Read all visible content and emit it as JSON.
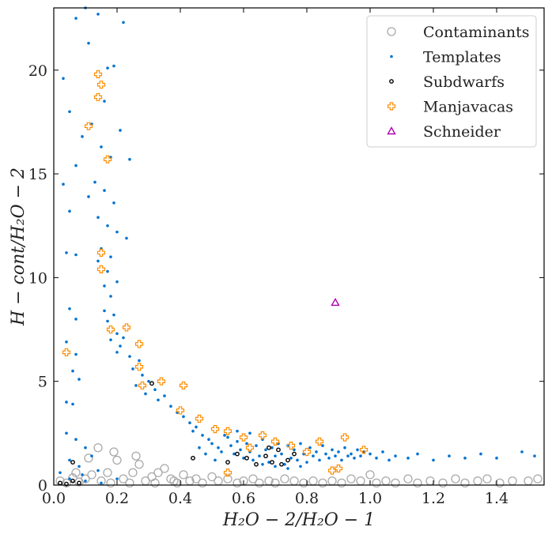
{
  "chart_data": {
    "type": "scatter",
    "xlabel": "H₂O − 2/H₂O − 1",
    "ylabel": "H − cont/H₂O − 2",
    "xlim": [
      0.0,
      1.55
    ],
    "ylim": [
      0,
      23
    ],
    "x_ticks": [
      0.0,
      0.2,
      0.4,
      0.6,
      0.8,
      1.0,
      1.2,
      1.4
    ],
    "x_tick_labels": [
      "0.0",
      "0.2",
      "0.4",
      "0.6",
      "0.8",
      "1.0",
      "1.2",
      "1.4"
    ],
    "y_ticks": [
      0,
      5,
      10,
      15,
      20
    ],
    "y_tick_labels": [
      "0",
      "5",
      "10",
      "15",
      "20"
    ],
    "grid": false,
    "legend_position": "top-right",
    "series": [
      {
        "name": "Contaminants",
        "marker": "open-circle",
        "color": "#a9a9a9",
        "points": [
          [
            0.02,
            0.2
          ],
          [
            0.04,
            0.1
          ],
          [
            0.06,
            0.35
          ],
          [
            0.08,
            0.15
          ],
          [
            0.1,
            0.3
          ],
          [
            0.12,
            0.5
          ],
          [
            0.14,
            1.8
          ],
          [
            0.15,
            0.2
          ],
          [
            0.17,
            0.6
          ],
          [
            0.19,
            1.6
          ],
          [
            0.2,
            1.2
          ],
          [
            0.22,
            0.3
          ],
          [
            0.24,
            0.1
          ],
          [
            0.26,
            1.4
          ],
          [
            0.27,
            1.0
          ],
          [
            0.29,
            0.2
          ],
          [
            0.31,
            0.4
          ],
          [
            0.33,
            0.6
          ],
          [
            0.35,
            0.8
          ],
          [
            0.37,
            0.3
          ],
          [
            0.39,
            0.1
          ],
          [
            0.41,
            0.5
          ],
          [
            0.43,
            0.2
          ],
          [
            0.45,
            0.3
          ],
          [
            0.47,
            0.1
          ],
          [
            0.5,
            0.4
          ],
          [
            0.52,
            0.2
          ],
          [
            0.55,
            0.3
          ],
          [
            0.58,
            0.1
          ],
          [
            0.6,
            0.2
          ],
          [
            0.63,
            0.3
          ],
          [
            0.65,
            0.1
          ],
          [
            0.68,
            0.2
          ],
          [
            0.7,
            0.1
          ],
          [
            0.73,
            0.3
          ],
          [
            0.76,
            0.2
          ],
          [
            0.79,
            0.1
          ],
          [
            0.82,
            0.2
          ],
          [
            0.85,
            0.1
          ],
          [
            0.88,
            0.2
          ],
          [
            0.91,
            0.1
          ],
          [
            0.94,
            0.3
          ],
          [
            0.97,
            0.2
          ],
          [
            1.0,
            0.5
          ],
          [
            1.02,
            0.1
          ],
          [
            1.05,
            0.2
          ],
          [
            1.08,
            0.1
          ],
          [
            1.12,
            0.3
          ],
          [
            1.15,
            0.1
          ],
          [
            1.19,
            0.2
          ],
          [
            1.23,
            0.1
          ],
          [
            1.27,
            0.3
          ],
          [
            1.3,
            0.1
          ],
          [
            1.34,
            0.2
          ],
          [
            1.37,
            0.3
          ],
          [
            1.41,
            0.1
          ],
          [
            1.45,
            0.2
          ],
          [
            1.5,
            0.2
          ],
          [
            1.53,
            0.3
          ],
          [
            0.18,
            0.1
          ],
          [
            0.25,
            0.6
          ],
          [
            0.32,
            0.1
          ],
          [
            0.38,
            0.2
          ],
          [
            0.11,
            1.3
          ],
          [
            0.07,
            0.6
          ]
        ]
      },
      {
        "name": "Templates",
        "marker": "dot",
        "color": "#0072cf",
        "points": [
          [
            0.03,
            19.6
          ],
          [
            0.05,
            18.0
          ],
          [
            0.07,
            22.5
          ],
          [
            0.1,
            23.0
          ],
          [
            0.11,
            21.3
          ],
          [
            0.14,
            22.7
          ],
          [
            0.16,
            18.5
          ],
          [
            0.17,
            20.1
          ],
          [
            0.19,
            20.2
          ],
          [
            0.22,
            22.3
          ],
          [
            0.09,
            16.8
          ],
          [
            0.12,
            17.4
          ],
          [
            0.15,
            16.3
          ],
          [
            0.18,
            15.8
          ],
          [
            0.21,
            17.1
          ],
          [
            0.24,
            15.7
          ],
          [
            0.07,
            15.4
          ],
          [
            0.13,
            14.6
          ],
          [
            0.16,
            14.2
          ],
          [
            0.19,
            13.6
          ],
          [
            0.03,
            14.5
          ],
          [
            0.05,
            13.2
          ],
          [
            0.11,
            13.9
          ],
          [
            0.14,
            12.9
          ],
          [
            0.17,
            12.5
          ],
          [
            0.2,
            12.2
          ],
          [
            0.23,
            11.9
          ],
          [
            0.07,
            11.1
          ],
          [
            0.15,
            11.4
          ],
          [
            0.18,
            11.0
          ],
          [
            0.04,
            11.2
          ],
          [
            0.14,
            10.8
          ],
          [
            0.17,
            10.3
          ],
          [
            0.2,
            9.8
          ],
          [
            0.16,
            9.6
          ],
          [
            0.18,
            9.1
          ],
          [
            0.05,
            8.5
          ],
          [
            0.07,
            8.0
          ],
          [
            0.16,
            8.4
          ],
          [
            0.19,
            8.2
          ],
          [
            0.17,
            7.9
          ],
          [
            0.2,
            7.3
          ],
          [
            0.22,
            7.1
          ],
          [
            0.18,
            7.0
          ],
          [
            0.04,
            6.9
          ],
          [
            0.07,
            6.3
          ],
          [
            0.21,
            6.7
          ],
          [
            0.24,
            6.2
          ],
          [
            0.27,
            6.0
          ],
          [
            0.2,
            6.4
          ],
          [
            0.06,
            5.5
          ],
          [
            0.08,
            5.1
          ],
          [
            0.25,
            5.6
          ],
          [
            0.28,
            5.3
          ],
          [
            0.3,
            5.0
          ],
          [
            0.26,
            4.8
          ],
          [
            0.32,
            4.6
          ],
          [
            0.35,
            4.3
          ],
          [
            0.04,
            4.0
          ],
          [
            0.06,
            3.9
          ],
          [
            0.29,
            4.4
          ],
          [
            0.33,
            4.1
          ],
          [
            0.37,
            3.8
          ],
          [
            0.39,
            3.5
          ],
          [
            0.41,
            3.3
          ],
          [
            0.43,
            3.0
          ],
          [
            0.45,
            2.8
          ],
          [
            0.04,
            2.5
          ],
          [
            0.07,
            2.2
          ],
          [
            0.1,
            1.8
          ],
          [
            0.12,
            1.4
          ],
          [
            0.05,
            1.2
          ],
          [
            0.08,
            0.9
          ],
          [
            0.02,
            0.6
          ],
          [
            0.09,
            0.5
          ],
          [
            0.14,
            0.7
          ],
          [
            0.44,
            2.6
          ],
          [
            0.47,
            2.4
          ],
          [
            0.49,
            2.2
          ],
          [
            0.5,
            2.0
          ],
          [
            0.52,
            1.8
          ],
          [
            0.53,
            1.6
          ],
          [
            0.55,
            2.3
          ],
          [
            0.56,
            1.9
          ],
          [
            0.57,
            1.5
          ],
          [
            0.58,
            2.1
          ],
          [
            0.59,
            1.7
          ],
          [
            0.6,
            1.3
          ],
          [
            0.61,
            2.0
          ],
          [
            0.62,
            1.6
          ],
          [
            0.63,
            1.2
          ],
          [
            0.64,
            1.9
          ],
          [
            0.65,
            1.4
          ],
          [
            0.66,
            2.2
          ],
          [
            0.67,
            1.7
          ],
          [
            0.68,
            1.1
          ],
          [
            0.69,
            1.8
          ],
          [
            0.7,
            1.4
          ],
          [
            0.71,
            2.0
          ],
          [
            0.72,
            1.5
          ],
          [
            0.73,
            1.0
          ],
          [
            0.74,
            1.9
          ],
          [
            0.75,
            1.3
          ],
          [
            0.76,
            1.7
          ],
          [
            0.77,
            1.2
          ],
          [
            0.78,
            2.0
          ],
          [
            0.79,
            1.5
          ],
          [
            0.8,
            1.1
          ],
          [
            0.81,
            1.8
          ],
          [
            0.82,
            1.4
          ],
          [
            0.83,
            1.6
          ],
          [
            0.84,
            1.2
          ],
          [
            0.85,
            1.9
          ],
          [
            0.86,
            1.5
          ],
          [
            0.87,
            1.3
          ],
          [
            0.88,
            1.7
          ],
          [
            0.89,
            1.4
          ],
          [
            0.9,
            1.6
          ],
          [
            0.91,
            1.2
          ],
          [
            0.92,
            1.8
          ],
          [
            0.93,
            1.4
          ],
          [
            0.94,
            1.5
          ],
          [
            0.95,
            1.3
          ],
          [
            0.96,
            1.7
          ],
          [
            0.97,
            1.4
          ],
          [
            0.98,
            1.6
          ],
          [
            1.0,
            1.5
          ],
          [
            1.02,
            1.3
          ],
          [
            1.04,
            1.6
          ],
          [
            1.06,
            1.2
          ],
          [
            1.08,
            1.4
          ],
          [
            1.12,
            1.3
          ],
          [
            1.15,
            1.5
          ],
          [
            1.2,
            1.2
          ],
          [
            1.25,
            1.4
          ],
          [
            1.3,
            1.3
          ],
          [
            1.35,
            1.5
          ],
          [
            1.4,
            1.3
          ],
          [
            1.48,
            1.6
          ],
          [
            1.52,
            1.4
          ],
          [
            0.54,
            2.4
          ],
          [
            0.58,
            2.6
          ],
          [
            0.62,
            2.5
          ],
          [
            0.66,
            1.0
          ],
          [
            0.7,
            0.9
          ],
          [
            0.74,
            0.8
          ],
          [
            0.78,
            0.9
          ],
          [
            0.51,
            1.2
          ],
          [
            0.48,
            1.5
          ],
          [
            0.46,
            1.8
          ],
          [
            0.05,
            0.3
          ],
          [
            0.1,
            0.2
          ],
          [
            0.15,
            0.1
          ],
          [
            0.2,
            0.3
          ]
        ]
      },
      {
        "name": "Subdwarfs",
        "marker": "open-circle-small",
        "color": "#000000",
        "points": [
          [
            0.02,
            0.1
          ],
          [
            0.04,
            0.05
          ],
          [
            0.06,
            0.2
          ],
          [
            0.08,
            0.1
          ],
          [
            0.06,
            1.1
          ],
          [
            0.31,
            4.9
          ],
          [
            0.44,
            1.3
          ],
          [
            0.55,
            1.1
          ],
          [
            0.58,
            1.5
          ],
          [
            0.61,
            1.3
          ],
          [
            0.64,
            1.0
          ],
          [
            0.67,
            1.4
          ],
          [
            0.69,
            1.1
          ],
          [
            0.71,
            1.7
          ],
          [
            0.72,
            1.0
          ],
          [
            0.74,
            1.2
          ],
          [
            0.76,
            1.5
          ],
          [
            0.68,
            1.8
          ]
        ]
      },
      {
        "name": "Manjavacas",
        "marker": "open-plus",
        "color": "#ff8c00",
        "points": [
          [
            0.14,
            19.8
          ],
          [
            0.15,
            19.3
          ],
          [
            0.14,
            18.7
          ],
          [
            0.11,
            17.3
          ],
          [
            0.17,
            15.7
          ],
          [
            0.15,
            11.2
          ],
          [
            0.15,
            10.4
          ],
          [
            0.04,
            6.4
          ],
          [
            0.18,
            7.5
          ],
          [
            0.23,
            7.6
          ],
          [
            0.27,
            6.8
          ],
          [
            0.27,
            5.7
          ],
          [
            0.28,
            4.8
          ],
          [
            0.34,
            5.0
          ],
          [
            0.41,
            4.8
          ],
          [
            0.4,
            3.6
          ],
          [
            0.46,
            3.2
          ],
          [
            0.51,
            2.7
          ],
          [
            0.55,
            2.6
          ],
          [
            0.6,
            2.3
          ],
          [
            0.62,
            1.8
          ],
          [
            0.66,
            2.4
          ],
          [
            0.7,
            2.1
          ],
          [
            0.75,
            1.9
          ],
          [
            0.8,
            1.6
          ],
          [
            0.84,
            2.1
          ],
          [
            0.92,
            2.3
          ],
          [
            0.98,
            1.7
          ],
          [
            0.55,
            0.6
          ],
          [
            0.88,
            0.7
          ],
          [
            0.9,
            0.8
          ]
        ]
      },
      {
        "name": "Schneider",
        "marker": "open-triangle",
        "color": "#b000b0",
        "points": [
          [
            0.89,
            8.8
          ]
        ]
      }
    ]
  }
}
